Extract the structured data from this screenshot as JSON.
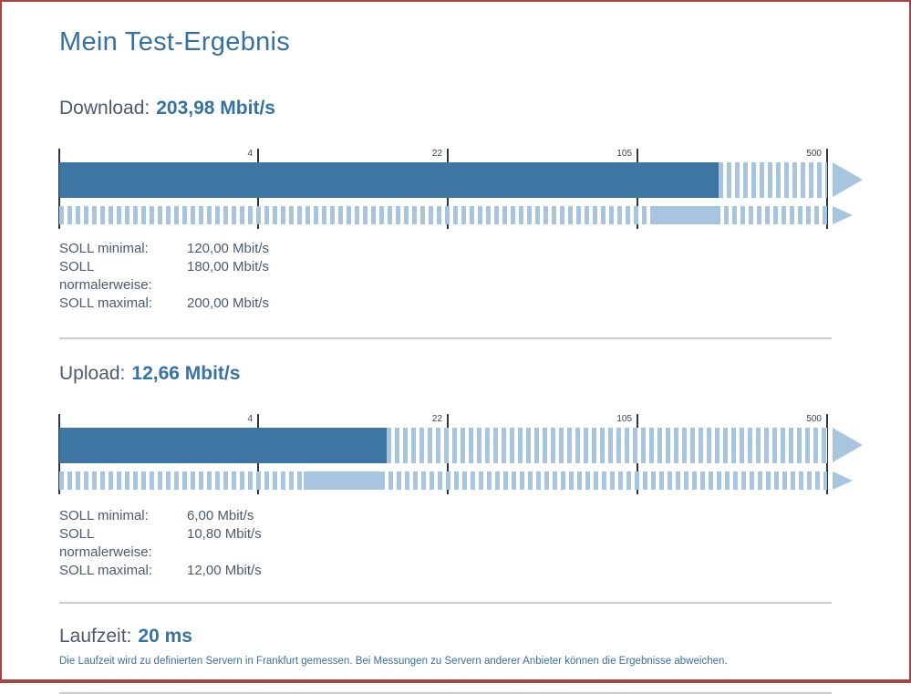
{
  "page": {
    "title": "Mein Test-Ergebnis"
  },
  "colors": {
    "accent_blue": "#3673a5",
    "heading_blue": "#36719f",
    "body_text": "#4b5b6b",
    "bar_solid": "#3d76a3",
    "bar_light": "#a7c5de",
    "tick_line": "#253746",
    "page_border_red": "#a94442",
    "divider_gray": "#cccccc"
  },
  "sections": {
    "download": {
      "label": "Download:",
      "value": "203,98 Mbit/s",
      "soll": [
        {
          "label": "SOLL minimal:",
          "value": "120,00 Mbit/s"
        },
        {
          "label": "SOLL normalerweise:",
          "value": "180,00 Mbit/s"
        },
        {
          "label": "SOLL maximal:",
          "value": "200,00 Mbit/s"
        }
      ]
    },
    "upload": {
      "label": "Upload:",
      "value": "12,66 Mbit/s",
      "soll": [
        {
          "label": "SOLL minimal:",
          "value": "6,00 Mbit/s"
        },
        {
          "label": "SOLL normalerweise:",
          "value": "10,80 Mbit/s"
        },
        {
          "label": "SOLL maximal:",
          "value": "12,00 Mbit/s"
        }
      ]
    },
    "laufzeit": {
      "label": "Laufzeit:",
      "value": "20 ms",
      "note": "Die Laufzeit wird zu definierten Servern in Frankfurt gemessen. Bei Messungen zu Servern anderer Anbieter können die Ergebnisse abweichen."
    }
  },
  "chart_data": [
    {
      "type": "bar",
      "name": "download",
      "title": "Download",
      "unit": "Mbit/s",
      "scale": "log",
      "axis_min": 0.67,
      "axis_max": 500,
      "ticks": [
        4,
        22,
        105,
        500
      ],
      "measured": 203.98,
      "soll_minimal": 120.0,
      "soll_normalerweise": 180.0,
      "soll_maximal": 200.0
    },
    {
      "type": "bar",
      "name": "upload",
      "title": "Upload",
      "unit": "Mbit/s",
      "scale": "log",
      "axis_min": 0.67,
      "axis_max": 500,
      "ticks": [
        4,
        22,
        105,
        500
      ],
      "measured": 12.66,
      "soll_minimal": 6.0,
      "soll_normalerweise": 10.8,
      "soll_maximal": 12.0
    }
  ]
}
